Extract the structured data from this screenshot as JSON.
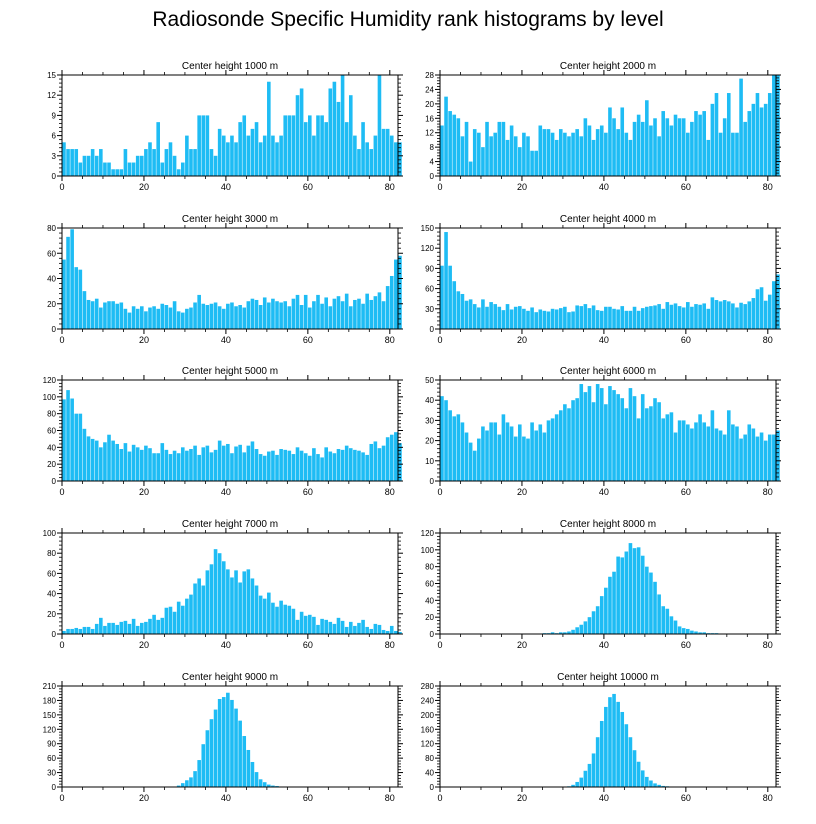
{
  "title": "Radiosonde Specific Humidity rank histograms by level",
  "chart_data": [
    {
      "type": "bar",
      "title": "Center height 1000 m",
      "xlim": [
        0,
        82
      ],
      "ylim": [
        0,
        15
      ],
      "xticks": [
        0,
        20,
        40,
        60,
        80
      ],
      "yticks": [
        0,
        3,
        6,
        9,
        12,
        15
      ],
      "values": [
        5,
        4,
        4,
        4,
        2,
        3,
        3,
        4,
        3,
        4,
        2,
        2,
        1,
        1,
        1,
        4,
        2,
        2,
        3,
        3,
        4,
        5,
        4,
        8,
        2,
        4,
        5,
        3,
        1,
        2,
        6,
        4,
        4,
        9,
        9,
        9,
        4,
        3,
        7,
        6,
        5,
        6,
        5,
        8,
        9,
        6,
        7,
        8,
        5,
        6,
        14,
        6,
        5,
        6,
        9,
        9,
        9,
        12,
        13,
        8,
        9,
        6,
        9,
        9,
        8,
        13,
        14,
        11,
        15,
        8,
        12,
        6,
        4,
        8,
        5,
        4,
        6,
        15,
        7,
        7,
        6,
        5,
        5
      ]
    },
    {
      "type": "bar",
      "title": "Center height 2000 m",
      "xlim": [
        0,
        82
      ],
      "ylim": [
        0,
        28
      ],
      "xticks": [
        0,
        20,
        40,
        60,
        80
      ],
      "yticks": [
        0,
        4,
        8,
        12,
        16,
        20,
        24,
        28
      ],
      "values": [
        14,
        22,
        18,
        17,
        16,
        11,
        15,
        4,
        13,
        12,
        8,
        15,
        11,
        12,
        15,
        15,
        10,
        14,
        11,
        8,
        12,
        11,
        7,
        7,
        14,
        13,
        13,
        12,
        10,
        13,
        12,
        11,
        12,
        13,
        11,
        16,
        14,
        10,
        13,
        14,
        12,
        19,
        16,
        13,
        19,
        12,
        10,
        15,
        17,
        15,
        21,
        14,
        16,
        11,
        18,
        16,
        14,
        17,
        16,
        16,
        12,
        15,
        18,
        17,
        18,
        10,
        20,
        23,
        12,
        16,
        23,
        12,
        12,
        27,
        15,
        18,
        20,
        23,
        19,
        20,
        23,
        28,
        28
      ]
    },
    {
      "type": "bar",
      "title": "Center height 3000 m",
      "xlim": [
        0,
        82
      ],
      "ylim": [
        0,
        80
      ],
      "xticks": [
        0,
        20,
        40,
        60,
        80
      ],
      "yticks": [
        0,
        20,
        40,
        60,
        80
      ],
      "values": [
        55,
        73,
        79,
        49,
        47,
        30,
        23,
        22,
        24,
        17,
        21,
        22,
        22,
        20,
        21,
        16,
        13,
        18,
        16,
        18,
        14,
        17,
        18,
        16,
        20,
        19,
        17,
        22,
        14,
        13,
        16,
        17,
        21,
        27,
        20,
        19,
        20,
        21,
        18,
        16,
        20,
        21,
        18,
        19,
        17,
        22,
        24,
        23,
        19,
        25,
        21,
        24,
        22,
        21,
        22,
        18,
        24,
        27,
        19,
        27,
        17,
        22,
        27,
        20,
        25,
        18,
        24,
        26,
        22,
        28,
        18,
        23,
        24,
        20,
        28,
        23,
        26,
        29,
        22,
        34,
        42,
        55,
        58
      ]
    },
    {
      "type": "bar",
      "title": "Center height 4000 m",
      "xlim": [
        0,
        82
      ],
      "ylim": [
        0,
        150
      ],
      "xticks": [
        0,
        20,
        40,
        60,
        80
      ],
      "yticks": [
        0,
        30,
        60,
        90,
        120,
        150
      ],
      "values": [
        94,
        144,
        94,
        71,
        56,
        52,
        42,
        44,
        37,
        32,
        44,
        33,
        40,
        37,
        33,
        28,
        37,
        29,
        33,
        34,
        30,
        27,
        32,
        25,
        29,
        27,
        26,
        30,
        29,
        31,
        33,
        25,
        26,
        35,
        34,
        37,
        31,
        35,
        28,
        27,
        33,
        33,
        30,
        29,
        34,
        27,
        27,
        33,
        27,
        31,
        33,
        34,
        35,
        37,
        30,
        40,
        36,
        38,
        34,
        32,
        40,
        33,
        37,
        36,
        38,
        30,
        47,
        43,
        41,
        43,
        41,
        38,
        32,
        39,
        37,
        41,
        46,
        59,
        62,
        42,
        51,
        71,
        81
      ]
    },
    {
      "type": "bar",
      "title": "Center height 5000 m",
      "xlim": [
        0,
        82
      ],
      "ylim": [
        0,
        120
      ],
      "xticks": [
        0,
        20,
        40,
        60,
        80
      ],
      "yticks": [
        0,
        20,
        40,
        60,
        80,
        100,
        120
      ],
      "values": [
        97,
        108,
        98,
        80,
        80,
        62,
        53,
        50,
        48,
        40,
        46,
        55,
        48,
        44,
        38,
        45,
        35,
        43,
        40,
        37,
        42,
        39,
        33,
        33,
        45,
        37,
        32,
        36,
        33,
        40,
        36,
        38,
        42,
        31,
        40,
        42,
        34,
        37,
        48,
        42,
        44,
        33,
        41,
        43,
        34,
        42,
        47,
        38,
        32,
        30,
        35,
        36,
        31,
        38,
        37,
        36,
        32,
        40,
        36,
        33,
        30,
        39,
        32,
        28,
        40,
        35,
        33,
        38,
        37,
        42,
        39,
        37,
        36,
        34,
        31,
        44,
        47,
        39,
        42,
        52,
        55,
        58,
        45
      ]
    },
    {
      "type": "bar",
      "title": "Center height 6000 m",
      "xlim": [
        0,
        82
      ],
      "ylim": [
        0,
        50
      ],
      "xticks": [
        0,
        20,
        40,
        60,
        80
      ],
      "yticks": [
        0,
        10,
        20,
        30,
        40,
        50
      ],
      "values": [
        42,
        40,
        35,
        32,
        33,
        29,
        24,
        19,
        15,
        21,
        27,
        25,
        29,
        29,
        23,
        33,
        29,
        27,
        22,
        28,
        22,
        21,
        29,
        25,
        28,
        24,
        30,
        31,
        33,
        35,
        38,
        36,
        40,
        41,
        48,
        44,
        47,
        39,
        48,
        46,
        38,
        47,
        45,
        43,
        41,
        36,
        46,
        42,
        31,
        43,
        36,
        37,
        41,
        39,
        31,
        33,
        34,
        24,
        30,
        30,
        28,
        26,
        29,
        33,
        29,
        27,
        35,
        26,
        25,
        23,
        35,
        28,
        27,
        21,
        23,
        28,
        26,
        22,
        24,
        20,
        23,
        23,
        25
      ]
    },
    {
      "type": "bar",
      "title": "Center height 7000 m",
      "xlim": [
        0,
        82
      ],
      "ylim": [
        0,
        100
      ],
      "xticks": [
        0,
        20,
        40,
        60,
        80
      ],
      "yticks": [
        0,
        20,
        40,
        60,
        80,
        100
      ],
      "values": [
        3,
        5,
        5,
        6,
        5,
        7,
        7,
        5,
        10,
        16,
        8,
        11,
        11,
        9,
        12,
        13,
        10,
        15,
        8,
        11,
        12,
        15,
        19,
        14,
        16,
        26,
        27,
        22,
        32,
        28,
        35,
        39,
        50,
        55,
        48,
        63,
        69,
        84,
        80,
        72,
        64,
        56,
        63,
        51,
        62,
        64,
        55,
        48,
        38,
        35,
        41,
        31,
        27,
        33,
        29,
        28,
        25,
        14,
        22,
        18,
        19,
        17,
        9,
        15,
        14,
        12,
        10,
        16,
        13,
        7,
        12,
        8,
        11,
        14,
        7,
        5,
        10,
        9,
        4,
        3,
        8,
        3,
        2
      ]
    },
    {
      "type": "bar",
      "title": "Center height 8000 m",
      "xlim": [
        0,
        82
      ],
      "ylim": [
        0,
        120
      ],
      "xticks": [
        0,
        20,
        40,
        60,
        80
      ],
      "yticks": [
        0,
        20,
        40,
        60,
        80,
        100,
        120
      ],
      "values": [
        0,
        0,
        0,
        0,
        0,
        0,
        0,
        0,
        0,
        0,
        0,
        0,
        0,
        0,
        0,
        0,
        0,
        0,
        0,
        0,
        0,
        0,
        0,
        0,
        0,
        1,
        1,
        2,
        1,
        2,
        2,
        3,
        5,
        8,
        11,
        15,
        20,
        27,
        33,
        45,
        55,
        68,
        74,
        92,
        91,
        98,
        108,
        102,
        103,
        93,
        80,
        73,
        62,
        47,
        33,
        30,
        21,
        16,
        9,
        7,
        6,
        4,
        3,
        2,
        2,
        1,
        1,
        1,
        0,
        0,
        0,
        0,
        0,
        0,
        0,
        0,
        0,
        0,
        0,
        0,
        0,
        0,
        0
      ]
    },
    {
      "type": "bar",
      "title": "Center height 9000 m",
      "xlim": [
        0,
        82
      ],
      "ylim": [
        0,
        210
      ],
      "xticks": [
        0,
        20,
        40,
        60,
        80
      ],
      "yticks": [
        0,
        30,
        60,
        90,
        120,
        150,
        180,
        210
      ],
      "values": [
        0,
        0,
        0,
        0,
        0,
        0,
        0,
        0,
        0,
        0,
        0,
        0,
        0,
        0,
        0,
        0,
        0,
        0,
        0,
        0,
        0,
        0,
        0,
        0,
        0,
        0,
        0,
        0,
        3,
        8,
        14,
        20,
        33,
        56,
        89,
        118,
        141,
        161,
        183,
        187,
        196,
        181,
        163,
        138,
        106,
        77,
        52,
        31,
        16,
        10,
        5,
        3,
        2,
        1,
        1,
        0,
        0,
        0,
        0,
        0,
        0,
        0,
        0,
        0,
        0,
        0,
        0,
        0,
        0,
        0,
        0,
        0,
        0,
        0,
        0,
        0,
        0,
        0,
        0,
        0,
        0,
        0,
        0
      ]
    },
    {
      "type": "bar",
      "title": "Center height 10000 m",
      "xlim": [
        0,
        82
      ],
      "ylim": [
        0,
        280
      ],
      "xticks": [
        0,
        20,
        40,
        60,
        80
      ],
      "yticks": [
        0,
        40,
        80,
        120,
        160,
        200,
        240,
        280
      ],
      "values": [
        0,
        0,
        0,
        0,
        0,
        0,
        0,
        0,
        0,
        0,
        0,
        0,
        0,
        0,
        0,
        0,
        0,
        0,
        0,
        0,
        0,
        0,
        0,
        0,
        0,
        0,
        0,
        0,
        0,
        0,
        1,
        2,
        6,
        14,
        26,
        45,
        64,
        93,
        138,
        183,
        222,
        249,
        258,
        236,
        208,
        174,
        138,
        102,
        70,
        46,
        28,
        18,
        10,
        6,
        3,
        2,
        1,
        0,
        0,
        0,
        0,
        0,
        0,
        0,
        0,
        0,
        0,
        0,
        0,
        0,
        0,
        0,
        0,
        0,
        0,
        0,
        0,
        0,
        0,
        0,
        0,
        0,
        0
      ]
    }
  ]
}
